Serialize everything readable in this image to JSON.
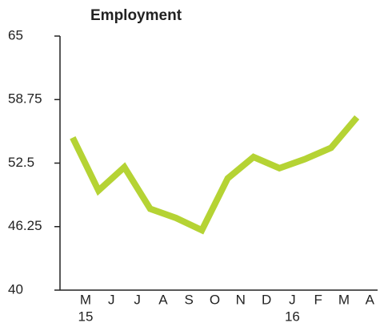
{
  "chart_data": {
    "type": "line",
    "title": "Employment",
    "categories": [
      "M",
      "J",
      "J",
      "A",
      "S",
      "O",
      "N",
      "D",
      "J",
      "F",
      "M",
      "A"
    ],
    "x_sublabels": [
      "15",
      null,
      null,
      null,
      null,
      null,
      null,
      null,
      "16",
      null,
      null,
      null
    ],
    "series": [
      {
        "name": "Employment",
        "color": "#b5d334",
        "values": [
          55,
          49.8,
          52.1,
          48,
          47.1,
          45.9,
          51,
          53.1,
          52,
          52.9,
          54,
          57
        ]
      }
    ],
    "ylim": [
      40,
      65
    ],
    "yticks": [
      40,
      {
        "value": 46.25,
        "label": "46.25"
      },
      {
        "value": 52.5,
        "label": "52.5"
      },
      {
        "value": 58.75,
        "label": "58.75"
      },
      65
    ]
  }
}
